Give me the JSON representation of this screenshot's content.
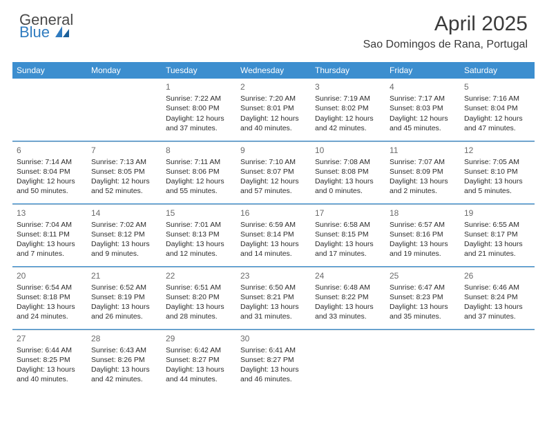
{
  "brand": {
    "word1": "General",
    "word2": "Blue"
  },
  "colors": {
    "header_bg": "#3c8ecf",
    "header_text": "#ffffff",
    "rule": "#3c8ecf",
    "rule_light": "#9fb9cc",
    "text": "#2b2b2b",
    "daynum": "#6a6a6a"
  },
  "title": "April 2025",
  "location": "Sao Domingos de Rana, Portugal",
  "day_headers": [
    "Sunday",
    "Monday",
    "Tuesday",
    "Wednesday",
    "Thursday",
    "Friday",
    "Saturday"
  ],
  "weeks": [
    [
      null,
      null,
      {
        "n": "1",
        "sr": "Sunrise: 7:22 AM",
        "ss": "Sunset: 8:00 PM",
        "d1": "Daylight: 12 hours",
        "d2": "and 37 minutes."
      },
      {
        "n": "2",
        "sr": "Sunrise: 7:20 AM",
        "ss": "Sunset: 8:01 PM",
        "d1": "Daylight: 12 hours",
        "d2": "and 40 minutes."
      },
      {
        "n": "3",
        "sr": "Sunrise: 7:19 AM",
        "ss": "Sunset: 8:02 PM",
        "d1": "Daylight: 12 hours",
        "d2": "and 42 minutes."
      },
      {
        "n": "4",
        "sr": "Sunrise: 7:17 AM",
        "ss": "Sunset: 8:03 PM",
        "d1": "Daylight: 12 hours",
        "d2": "and 45 minutes."
      },
      {
        "n": "5",
        "sr": "Sunrise: 7:16 AM",
        "ss": "Sunset: 8:04 PM",
        "d1": "Daylight: 12 hours",
        "d2": "and 47 minutes."
      }
    ],
    [
      {
        "n": "6",
        "sr": "Sunrise: 7:14 AM",
        "ss": "Sunset: 8:04 PM",
        "d1": "Daylight: 12 hours",
        "d2": "and 50 minutes."
      },
      {
        "n": "7",
        "sr": "Sunrise: 7:13 AM",
        "ss": "Sunset: 8:05 PM",
        "d1": "Daylight: 12 hours",
        "d2": "and 52 minutes."
      },
      {
        "n": "8",
        "sr": "Sunrise: 7:11 AM",
        "ss": "Sunset: 8:06 PM",
        "d1": "Daylight: 12 hours",
        "d2": "and 55 minutes."
      },
      {
        "n": "9",
        "sr": "Sunrise: 7:10 AM",
        "ss": "Sunset: 8:07 PM",
        "d1": "Daylight: 12 hours",
        "d2": "and 57 minutes."
      },
      {
        "n": "10",
        "sr": "Sunrise: 7:08 AM",
        "ss": "Sunset: 8:08 PM",
        "d1": "Daylight: 13 hours",
        "d2": "and 0 minutes."
      },
      {
        "n": "11",
        "sr": "Sunrise: 7:07 AM",
        "ss": "Sunset: 8:09 PM",
        "d1": "Daylight: 13 hours",
        "d2": "and 2 minutes."
      },
      {
        "n": "12",
        "sr": "Sunrise: 7:05 AM",
        "ss": "Sunset: 8:10 PM",
        "d1": "Daylight: 13 hours",
        "d2": "and 5 minutes."
      }
    ],
    [
      {
        "n": "13",
        "sr": "Sunrise: 7:04 AM",
        "ss": "Sunset: 8:11 PM",
        "d1": "Daylight: 13 hours",
        "d2": "and 7 minutes."
      },
      {
        "n": "14",
        "sr": "Sunrise: 7:02 AM",
        "ss": "Sunset: 8:12 PM",
        "d1": "Daylight: 13 hours",
        "d2": "and 9 minutes."
      },
      {
        "n": "15",
        "sr": "Sunrise: 7:01 AM",
        "ss": "Sunset: 8:13 PM",
        "d1": "Daylight: 13 hours",
        "d2": "and 12 minutes."
      },
      {
        "n": "16",
        "sr": "Sunrise: 6:59 AM",
        "ss": "Sunset: 8:14 PM",
        "d1": "Daylight: 13 hours",
        "d2": "and 14 minutes."
      },
      {
        "n": "17",
        "sr": "Sunrise: 6:58 AM",
        "ss": "Sunset: 8:15 PM",
        "d1": "Daylight: 13 hours",
        "d2": "and 17 minutes."
      },
      {
        "n": "18",
        "sr": "Sunrise: 6:57 AM",
        "ss": "Sunset: 8:16 PM",
        "d1": "Daylight: 13 hours",
        "d2": "and 19 minutes."
      },
      {
        "n": "19",
        "sr": "Sunrise: 6:55 AM",
        "ss": "Sunset: 8:17 PM",
        "d1": "Daylight: 13 hours",
        "d2": "and 21 minutes."
      }
    ],
    [
      {
        "n": "20",
        "sr": "Sunrise: 6:54 AM",
        "ss": "Sunset: 8:18 PM",
        "d1": "Daylight: 13 hours",
        "d2": "and 24 minutes."
      },
      {
        "n": "21",
        "sr": "Sunrise: 6:52 AM",
        "ss": "Sunset: 8:19 PM",
        "d1": "Daylight: 13 hours",
        "d2": "and 26 minutes."
      },
      {
        "n": "22",
        "sr": "Sunrise: 6:51 AM",
        "ss": "Sunset: 8:20 PM",
        "d1": "Daylight: 13 hours",
        "d2": "and 28 minutes."
      },
      {
        "n": "23",
        "sr": "Sunrise: 6:50 AM",
        "ss": "Sunset: 8:21 PM",
        "d1": "Daylight: 13 hours",
        "d2": "and 31 minutes."
      },
      {
        "n": "24",
        "sr": "Sunrise: 6:48 AM",
        "ss": "Sunset: 8:22 PM",
        "d1": "Daylight: 13 hours",
        "d2": "and 33 minutes."
      },
      {
        "n": "25",
        "sr": "Sunrise: 6:47 AM",
        "ss": "Sunset: 8:23 PM",
        "d1": "Daylight: 13 hours",
        "d2": "and 35 minutes."
      },
      {
        "n": "26",
        "sr": "Sunrise: 6:46 AM",
        "ss": "Sunset: 8:24 PM",
        "d1": "Daylight: 13 hours",
        "d2": "and 37 minutes."
      }
    ],
    [
      {
        "n": "27",
        "sr": "Sunrise: 6:44 AM",
        "ss": "Sunset: 8:25 PM",
        "d1": "Daylight: 13 hours",
        "d2": "and 40 minutes."
      },
      {
        "n": "28",
        "sr": "Sunrise: 6:43 AM",
        "ss": "Sunset: 8:26 PM",
        "d1": "Daylight: 13 hours",
        "d2": "and 42 minutes."
      },
      {
        "n": "29",
        "sr": "Sunrise: 6:42 AM",
        "ss": "Sunset: 8:27 PM",
        "d1": "Daylight: 13 hours",
        "d2": "and 44 minutes."
      },
      {
        "n": "30",
        "sr": "Sunrise: 6:41 AM",
        "ss": "Sunset: 8:27 PM",
        "d1": "Daylight: 13 hours",
        "d2": "and 46 minutes."
      },
      null,
      null,
      null
    ]
  ]
}
